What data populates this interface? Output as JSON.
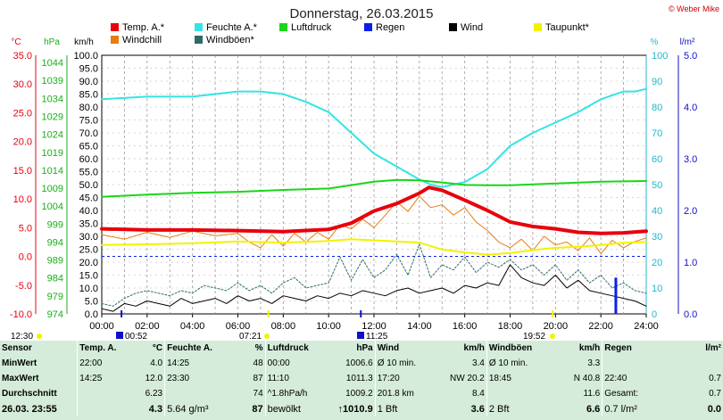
{
  "header": {
    "title": "Donnerstag, 26.03.2015",
    "copyright": "© Weber Mike"
  },
  "colors": {
    "temp": "#e8000c",
    "feuchte": "#35e4e4",
    "luftdruck": "#19d619",
    "regen": "#0b1fe8",
    "wind": "#000000",
    "taupunkt": "#f2f200",
    "windchill": "#e87c10",
    "windboeen": "#2e6a6a",
    "axis_temp": "#e8000c",
    "axis_hpa": "#19b019",
    "axis_pct": "#20b8c8",
    "axis_rain": "#1010c8",
    "stats_bg": "#d4ecd9"
  },
  "axis_headers": {
    "temp": "°C",
    "hpa": "hPa",
    "kmh": "km/h",
    "pct": "%",
    "rain": "l/m²"
  },
  "time_marks": {
    "sunrise": "07:21",
    "sunset": "19:52",
    "moonrise": "00:52",
    "moonset": "11:25",
    "day_length": "12:30"
  },
  "chart_data": {
    "type": "line",
    "title": "Donnerstag, 26.03.2015",
    "x_unit": "hours",
    "xlim": [
      0,
      24
    ],
    "xticks": [
      "00:00",
      "02:00",
      "04:00",
      "06:00",
      "08:00",
      "10:00",
      "12:00",
      "14:00",
      "16:00",
      "18:00",
      "20:00",
      "22:00",
      "24:00"
    ],
    "axes": {
      "temp": {
        "label": "°C",
        "lim": [
          -10,
          35
        ],
        "ticks": [
          "35.0",
          "30.0",
          "25.0",
          "20.0",
          "15.0",
          "10.0",
          "5.0",
          "0.0",
          "-5.0",
          "-10.0"
        ]
      },
      "hpa": {
        "label": "hPa",
        "lim": [
          974,
          1046
        ],
        "ticks": [
          "1044",
          "1039",
          "1034",
          "1029",
          "1024",
          "1019",
          "1014",
          "1009",
          "1004",
          "999",
          "994",
          "989",
          "984",
          "979",
          "974"
        ]
      },
      "kmh": {
        "label": "km/h",
        "lim": [
          0,
          100
        ],
        "ticks": [
          "100.0",
          "95.0",
          "90.0",
          "85.0",
          "80.0",
          "75.0",
          "70.0",
          "65.0",
          "60.0",
          "55.0",
          "50.0",
          "45.0",
          "40.0",
          "35.0",
          "30.0",
          "25.0",
          "20.0",
          "15.0",
          "10.0",
          "5.0",
          "0.0"
        ]
      },
      "pct": {
        "label": "%",
        "lim": [
          0,
          100
        ],
        "ticks": [
          "100",
          "90",
          "80",
          "70",
          "60",
          "50",
          "40",
          "30",
          "20",
          "10",
          "0"
        ]
      },
      "rain": {
        "label": "l/m²",
        "lim": [
          0,
          5
        ],
        "ticks": [
          "5.0",
          "4.0",
          "3.0",
          "2.0",
          "1.0",
          "0.0"
        ]
      }
    },
    "legend": [
      {
        "name": "Temp. A.*",
        "key": "temp"
      },
      {
        "name": "Feuchte A.*",
        "key": "feuchte"
      },
      {
        "name": "Luftdruck",
        "key": "luftdruck"
      },
      {
        "name": "Regen",
        "key": "regen"
      },
      {
        "name": "Wind",
        "key": "wind"
      },
      {
        "name": "Taupunkt*",
        "key": "taupunkt"
      },
      {
        "name": "Windchill",
        "key": "windchill"
      },
      {
        "name": "Windböen*",
        "key": "windboeen"
      }
    ],
    "series": [
      {
        "name": "Temp. A.*",
        "key": "temp",
        "axis": "temp",
        "width": 4,
        "x": [
          0,
          2,
          4,
          6,
          8,
          10,
          11,
          12,
          13,
          14,
          14.42,
          15,
          16,
          17,
          18,
          19,
          20,
          21,
          22,
          23,
          24
        ],
        "y": [
          4.8,
          4.6,
          4.6,
          4.5,
          4.3,
          4.7,
          5.8,
          7.9,
          9.2,
          11.0,
          12.0,
          11.5,
          9.8,
          8.0,
          6.0,
          5.2,
          4.8,
          4.2,
          4.0,
          4.1,
          4.4
        ]
      },
      {
        "name": "Feuchte A.*",
        "key": "feuchte",
        "axis": "pct",
        "width": 2,
        "x": [
          0,
          2,
          4,
          6,
          7,
          8,
          9,
          10,
          11,
          12,
          13,
          14,
          14.5,
          15,
          16,
          17,
          18,
          19,
          20,
          21,
          22,
          23,
          23.5,
          24
        ],
        "y": [
          83,
          84,
          84,
          86,
          86,
          85,
          82,
          78,
          70,
          62,
          57,
          52,
          50,
          49,
          51,
          56,
          65,
          70,
          74,
          78,
          83,
          86,
          86,
          87
        ]
      },
      {
        "name": "Luftdruck",
        "key": "luftdruck",
        "axis": "hpa",
        "width": 2,
        "x": [
          0,
          2,
          4,
          6,
          8,
          10,
          12,
          13,
          14,
          15,
          16,
          17,
          18,
          20,
          22,
          24
        ],
        "y": [
          1006.6,
          1007.2,
          1007.7,
          1008.0,
          1008.5,
          1008.9,
          1010.8,
          1011.3,
          1011.2,
          1010.6,
          1009.9,
          1009.8,
          1009.8,
          1010.3,
          1010.8,
          1011.0
        ]
      },
      {
        "name": "Taupunkt*",
        "key": "taupunkt",
        "axis": "temp",
        "width": 2,
        "x": [
          0,
          2,
          4,
          6,
          8,
          10,
          11,
          12,
          13,
          14,
          15,
          16,
          17,
          18,
          19,
          20,
          21,
          22,
          23,
          24
        ],
        "y": [
          2.0,
          2.1,
          2.3,
          2.6,
          2.4,
          2.7,
          3.0,
          2.8,
          2.6,
          2.4,
          1.2,
          0.7,
          0.3,
          0.6,
          1.1,
          1.5,
          1.7,
          2.0,
          2.4,
          2.5
        ]
      },
      {
        "name": "Windchill",
        "key": "windchill",
        "axis": "temp",
        "width": 1,
        "x": [
          0,
          1,
          2,
          3,
          4,
          5,
          6,
          6.5,
          7,
          7.5,
          8,
          8.5,
          9,
          9.5,
          10,
          10.5,
          11,
          11.5,
          12,
          12.5,
          13,
          13.5,
          14,
          14.5,
          15,
          15.5,
          16,
          16.5,
          17,
          17.5,
          18,
          18.5,
          19,
          19.5,
          20,
          20.5,
          21,
          21.5,
          22,
          22.5,
          23,
          23.5,
          24
        ],
        "y": [
          3.8,
          3.0,
          4.2,
          3.3,
          4.4,
          3.6,
          4.0,
          2.5,
          1.5,
          3.8,
          1.8,
          4.0,
          2.5,
          4.2,
          3.0,
          5.5,
          4.8,
          6.5,
          5.0,
          7.2,
          9.5,
          7.8,
          10.5,
          8.5,
          9.0,
          7.2,
          8.5,
          6.0,
          4.5,
          2.5,
          1.5,
          3.0,
          1.0,
          3.5,
          2.0,
          2.5,
          1.0,
          3.2,
          0.5,
          2.8,
          1.5,
          2.6,
          3.2
        ]
      },
      {
        "name": "Wind",
        "key": "wind",
        "axis": "kmh",
        "width": 1,
        "x": [
          0,
          0.5,
          1,
          1.5,
          2,
          2.5,
          3,
          3.5,
          4,
          4.5,
          5,
          5.5,
          6,
          6.5,
          7,
          7.5,
          8,
          8.5,
          9,
          9.5,
          10,
          10.5,
          11,
          11.5,
          12,
          12.5,
          13,
          13.5,
          14,
          14.5,
          15,
          15.5,
          16,
          16.5,
          17,
          17.5,
          18,
          18.5,
          19,
          19.5,
          20,
          20.5,
          21,
          21.5,
          22,
          22.5,
          23,
          23.5,
          24
        ],
        "y": [
          2,
          1,
          4,
          3,
          5,
          4,
          3,
          6,
          4,
          5,
          6,
          4,
          7,
          5,
          6,
          4,
          7,
          6,
          5,
          7,
          6,
          8,
          7,
          9,
          8,
          7,
          9,
          10,
          8,
          9,
          10,
          8,
          11,
          10,
          12,
          11,
          19,
          14,
          12,
          11,
          15,
          10,
          13,
          9,
          8,
          7,
          6,
          5,
          3
        ]
      },
      {
        "name": "Windböen*",
        "key": "windboeen",
        "axis": "kmh",
        "width": 1,
        "dash": "2,2",
        "x": [
          0,
          0.5,
          1,
          1.5,
          2,
          2.5,
          3,
          3.5,
          4,
          4.5,
          5,
          5.5,
          6,
          6.5,
          7,
          7.5,
          8,
          8.5,
          9,
          9.5,
          10,
          10.5,
          11,
          11.5,
          12,
          12.5,
          13,
          13.5,
          14,
          14.5,
          15,
          15.5,
          16,
          16.5,
          17,
          17.5,
          18,
          18.5,
          19,
          19.5,
          20,
          20.5,
          21,
          21.5,
          22,
          22.5,
          23,
          23.5,
          24
        ],
        "y": [
          4,
          3,
          6,
          8,
          9,
          8,
          7,
          9,
          8,
          11,
          10,
          9,
          12,
          9,
          11,
          8,
          12,
          14,
          10,
          11,
          12,
          22,
          13,
          21,
          14,
          17,
          23,
          15,
          27,
          14,
          19,
          17,
          22,
          16,
          20,
          18,
          21,
          17,
          19,
          15,
          19,
          13,
          17,
          12,
          15,
          10,
          12,
          9,
          8
        ]
      },
      {
        "name": "Regen",
        "key": "regen",
        "axis": "rain",
        "type": "bar",
        "x": [
          22.66
        ],
        "y": [
          0.7
        ]
      }
    ],
    "reference_lines": [
      {
        "axis": "temp",
        "value": 0,
        "color": "#0b1fe8",
        "dash": "3,3"
      }
    ],
    "markers": [
      {
        "x": 7.35,
        "color": "#f2f200"
      },
      {
        "x": 19.87,
        "color": "#f2f200"
      },
      {
        "x": 0.87,
        "color": "#1010c8"
      },
      {
        "x": 11.42,
        "color": "#1010c8"
      }
    ]
  },
  "stats": {
    "headers": {
      "sensor": "Sensor",
      "temp": "Temp. A.",
      "temp_unit": "°C",
      "feuchte": "Feuchte A.",
      "feuchte_unit": "%",
      "luftdruck": "Luftdruck",
      "luftdruck_unit": "hPa",
      "wind": "Wind",
      "wind_unit": "km/h",
      "windboeen": "Windböen",
      "windboeen_unit": "km/h",
      "regen": "Regen",
      "regen_unit": "l/m²"
    },
    "rows": [
      {
        "label": "MinWert",
        "temp_t": "22:00",
        "temp_v": "4.0",
        "feuchte_t": "14:25",
        "feuchte_v": "48",
        "druck_t": "00:00",
        "druck_v": "1006.6",
        "wind_t": "Ø 10 min.",
        "wind_v": "3.4",
        "boeen_t": "Ø 10 min.",
        "boeen_v": "3.3",
        "regen_t": "",
        "regen_v": ""
      },
      {
        "label": "MaxWert",
        "temp_t": "14:25",
        "temp_v": "12.0",
        "feuchte_t": "23:30",
        "feuchte_v": "87",
        "druck_t": "11:10",
        "druck_v": "1011.3",
        "wind_t": "17:20",
        "wind_v": "NW 20.2",
        "boeen_t": "18:45",
        "boeen_v": "N 40.8",
        "regen_t": "22:40",
        "regen_v": "0.7"
      },
      {
        "label": "Durchschnitt",
        "temp_t": "",
        "temp_v": "6.23",
        "feuchte_t": "",
        "feuchte_v": "74",
        "druck_t": "^1.8hPa/h",
        "druck_v": "1009.2",
        "wind_t": "201.8 km",
        "wind_v": "8.4",
        "boeen_t": "",
        "boeen_v": "11.6",
        "regen_t": "Gesamt:",
        "regen_v": "0.7"
      },
      {
        "label": "26.03. 23:55",
        "temp_t": "",
        "temp_v": "4.3",
        "feuchte_t": "5.64 g/m³",
        "feuchte_v": "87",
        "druck_t": "bewölkt",
        "druck_v": "↑1010.9",
        "wind_t": "1 Bft",
        "wind_v": "3.6",
        "boeen_t": "2 Bft",
        "boeen_v": "6.6",
        "regen_t": "0.7 l/m²",
        "regen_v": "0.0"
      }
    ]
  }
}
